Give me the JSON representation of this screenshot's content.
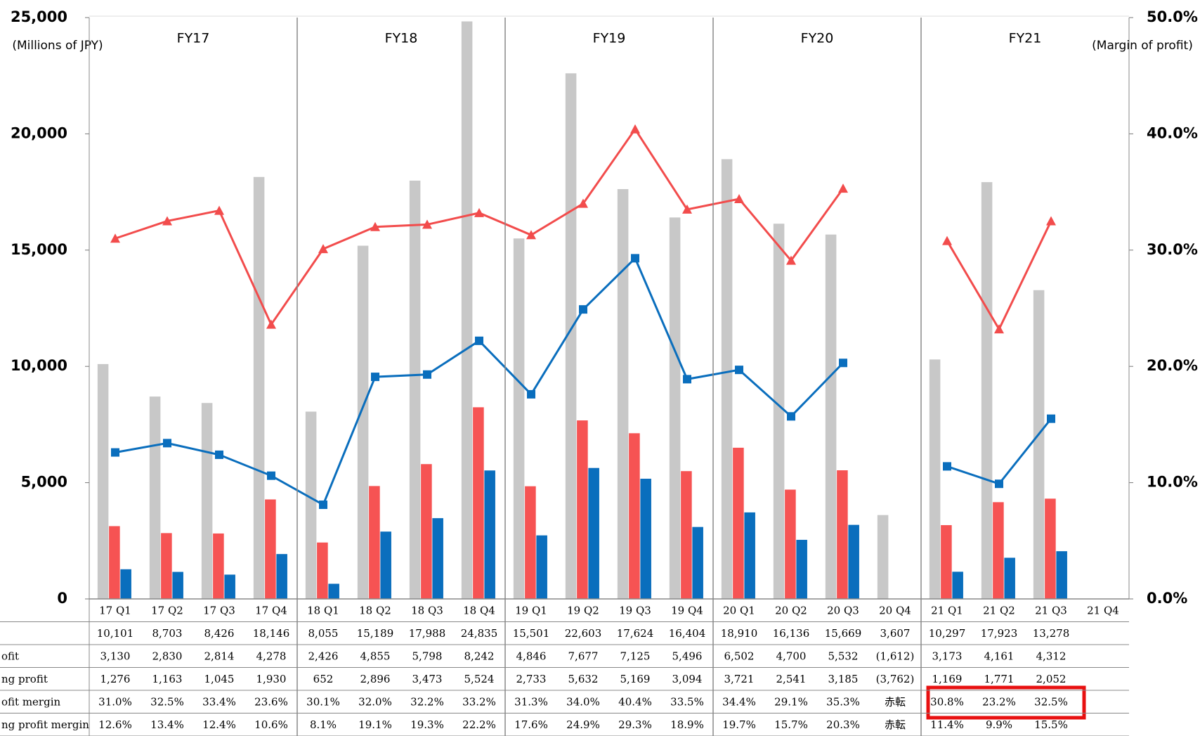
{
  "chart_data": {
    "type": "bar_line_table",
    "y_label": "(Millions of JPY)",
    "y2_label": "(Margin of profit)",
    "groups": [
      "FY17",
      "FY18",
      "FY19",
      "FY20",
      "FY21"
    ],
    "categories": [
      "17 Q1",
      "17 Q2",
      "17 Q3",
      "17 Q4",
      "18 Q1",
      "18 Q2",
      "18 Q3",
      "18 Q4",
      "19 Q1",
      "19 Q2",
      "19 Q3",
      "19 Q4",
      "20 Q1",
      "20 Q2",
      "20 Q3",
      "20 Q4",
      "21 Q1",
      "21 Q2",
      "21 Q3",
      "21 Q4"
    ],
    "ylim": [
      0,
      25000
    ],
    "yticks": [
      0,
      {
        "value": 5000,
        "label": "5,000"
      },
      {
        "value": 10000,
        "label": "10,000"
      },
      {
        "value": 15000,
        "label": "15,000"
      },
      {
        "value": 20000,
        "label": "20,000"
      },
      {
        "value": 25000,
        "label": "25,000"
      }
    ],
    "y2lim": [
      0,
      50
    ],
    "y2ticks": [
      {
        "value": 0,
        "label": "0.0%"
      },
      {
        "value": 10,
        "label": "10.0%"
      },
      {
        "value": 20,
        "label": "20.0%"
      },
      {
        "value": 30,
        "label": "30.0%"
      },
      {
        "value": 40,
        "label": "40.0%"
      },
      {
        "value": 50,
        "label": "50.0%"
      }
    ],
    "grid": false,
    "series": [
      {
        "kind": "bar",
        "color": "#c8c8c8",
        "values": [
          10101,
          8703,
          8426,
          18146,
          8055,
          15189,
          17988,
          24835,
          15501,
          22603,
          17624,
          16404,
          18910,
          16136,
          15669,
          3607,
          10297,
          17923,
          13278,
          null
        ],
        "value_labels": [
          "10,101",
          "8,703",
          "8,426",
          "18,146",
          "8,055",
          "15,189",
          "17,988",
          "24,835",
          "15,501",
          "22,603",
          "17,624",
          "16,404",
          "18,910",
          "16,136",
          "15,669",
          "3,607",
          "10,297",
          "17,923",
          "13,278",
          null
        ]
      },
      {
        "name": "ofit",
        "kind": "bar",
        "color": "#f65353",
        "values": [
          3130,
          2830,
          2814,
          4278,
          2426,
          4855,
          5798,
          8242,
          4846,
          7677,
          7125,
          5496,
          6502,
          4700,
          5532,
          -1612,
          3173,
          4161,
          4312,
          null
        ],
        "value_labels": [
          "3,130",
          "2,830",
          "2,814",
          "4,278",
          "2,426",
          "4,855",
          "5,798",
          "8,242",
          "4,846",
          "7,677",
          "7,125",
          "5,496",
          "6,502",
          "4,700",
          "5,532",
          "(1,612)",
          "3,173",
          "4,161",
          "4,312",
          null
        ]
      },
      {
        "name": "ng profit",
        "kind": "bar",
        "color": "#0a6ebd",
        "values": [
          1276,
          1163,
          1045,
          1930,
          652,
          2896,
          3473,
          5524,
          2733,
          5632,
          5169,
          3094,
          3721,
          2541,
          3185,
          -3762,
          1169,
          1771,
          2052,
          null
        ],
        "value_labels": [
          "1,276",
          "1,163",
          "1,045",
          "1,930",
          "652",
          "2,896",
          "3,473",
          "5,524",
          "2,733",
          "5,632",
          "5,169",
          "3,094",
          "3,721",
          "2,541",
          "3,185",
          "(3,762)",
          "1,169",
          "1,771",
          "2,052",
          null
        ]
      },
      {
        "name": "ofit mergin",
        "kind": "line",
        "axis": "y2",
        "color": "#f24c4c",
        "marker": "triangle",
        "values": [
          31.0,
          32.5,
          33.4,
          23.6,
          30.1,
          32.0,
          32.2,
          33.2,
          31.3,
          34.0,
          40.4,
          33.5,
          34.4,
          29.1,
          35.3,
          null,
          30.8,
          23.2,
          32.5,
          null
        ],
        "value_labels": [
          "31.0%",
          "32.5%",
          "33.4%",
          "23.6%",
          "30.1%",
          "32.0%",
          "32.2%",
          "33.2%",
          "31.3%",
          "34.0%",
          "40.4%",
          "33.5%",
          "34.4%",
          "29.1%",
          "35.3%",
          "赤転",
          "30.8%",
          "23.2%",
          "32.5%",
          null
        ]
      },
      {
        "name": "ng profit mergin",
        "kind": "line",
        "axis": "y2",
        "color": "#0a6ebd",
        "marker": "square",
        "values": [
          12.6,
          13.4,
          12.4,
          10.6,
          8.1,
          19.1,
          19.3,
          22.2,
          17.6,
          24.9,
          29.3,
          18.9,
          19.7,
          15.7,
          20.3,
          null,
          11.4,
          9.9,
          15.5,
          null
        ],
        "value_labels": [
          "12.6%",
          "13.4%",
          "12.4%",
          "10.6%",
          "8.1%",
          "19.1%",
          "19.3%",
          "22.2%",
          "17.6%",
          "24.9%",
          "29.3%",
          "18.9%",
          "19.7%",
          "15.7%",
          "20.3%",
          "赤転",
          "11.4%",
          "9.9%",
          "15.5%",
          null
        ]
      }
    ]
  }
}
